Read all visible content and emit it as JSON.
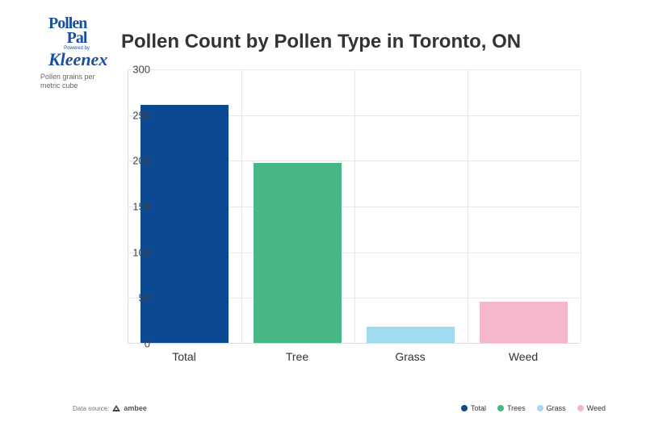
{
  "logo": {
    "line1": "Pollen",
    "line2": "Pal",
    "powered": "Powered by",
    "brand": "Kleenex"
  },
  "title": "Pollen Count by Pollen Type in Toronto, ON",
  "ylabel": "Pollen grains per metric cube",
  "chart": {
    "type": "bar",
    "categories": [
      "Total",
      "Tree",
      "Grass",
      "Weed"
    ],
    "values": [
      260,
      197,
      18,
      45
    ],
    "bar_colors": [
      "#0b4a92",
      "#47b885",
      "#a1d9f0",
      "#f4b7cd"
    ],
    "ylim": [
      0,
      300
    ],
    "ytick_step": 50,
    "yticks": [
      0,
      50,
      100,
      150,
      200,
      250,
      300
    ],
    "background_color": "#ffffff",
    "grid_color": "#e8e8e8",
    "axis_color": "#d9d9d9",
    "bar_width": 0.78,
    "title_fontsize": 24,
    "label_fontsize": 13,
    "xtick_fontsize": 14,
    "ylabel_fontsize": 9
  },
  "legend": {
    "items": [
      {
        "label": "Total",
        "color": "#0b4a92"
      },
      {
        "label": "Trees",
        "color": "#47b885"
      },
      {
        "label": "Grass",
        "color": "#a1d9f0"
      },
      {
        "label": "Weed",
        "color": "#f4b7cd"
      }
    ]
  },
  "footer": {
    "datasource_label": "Data source:",
    "datasource_name": "ambee"
  }
}
